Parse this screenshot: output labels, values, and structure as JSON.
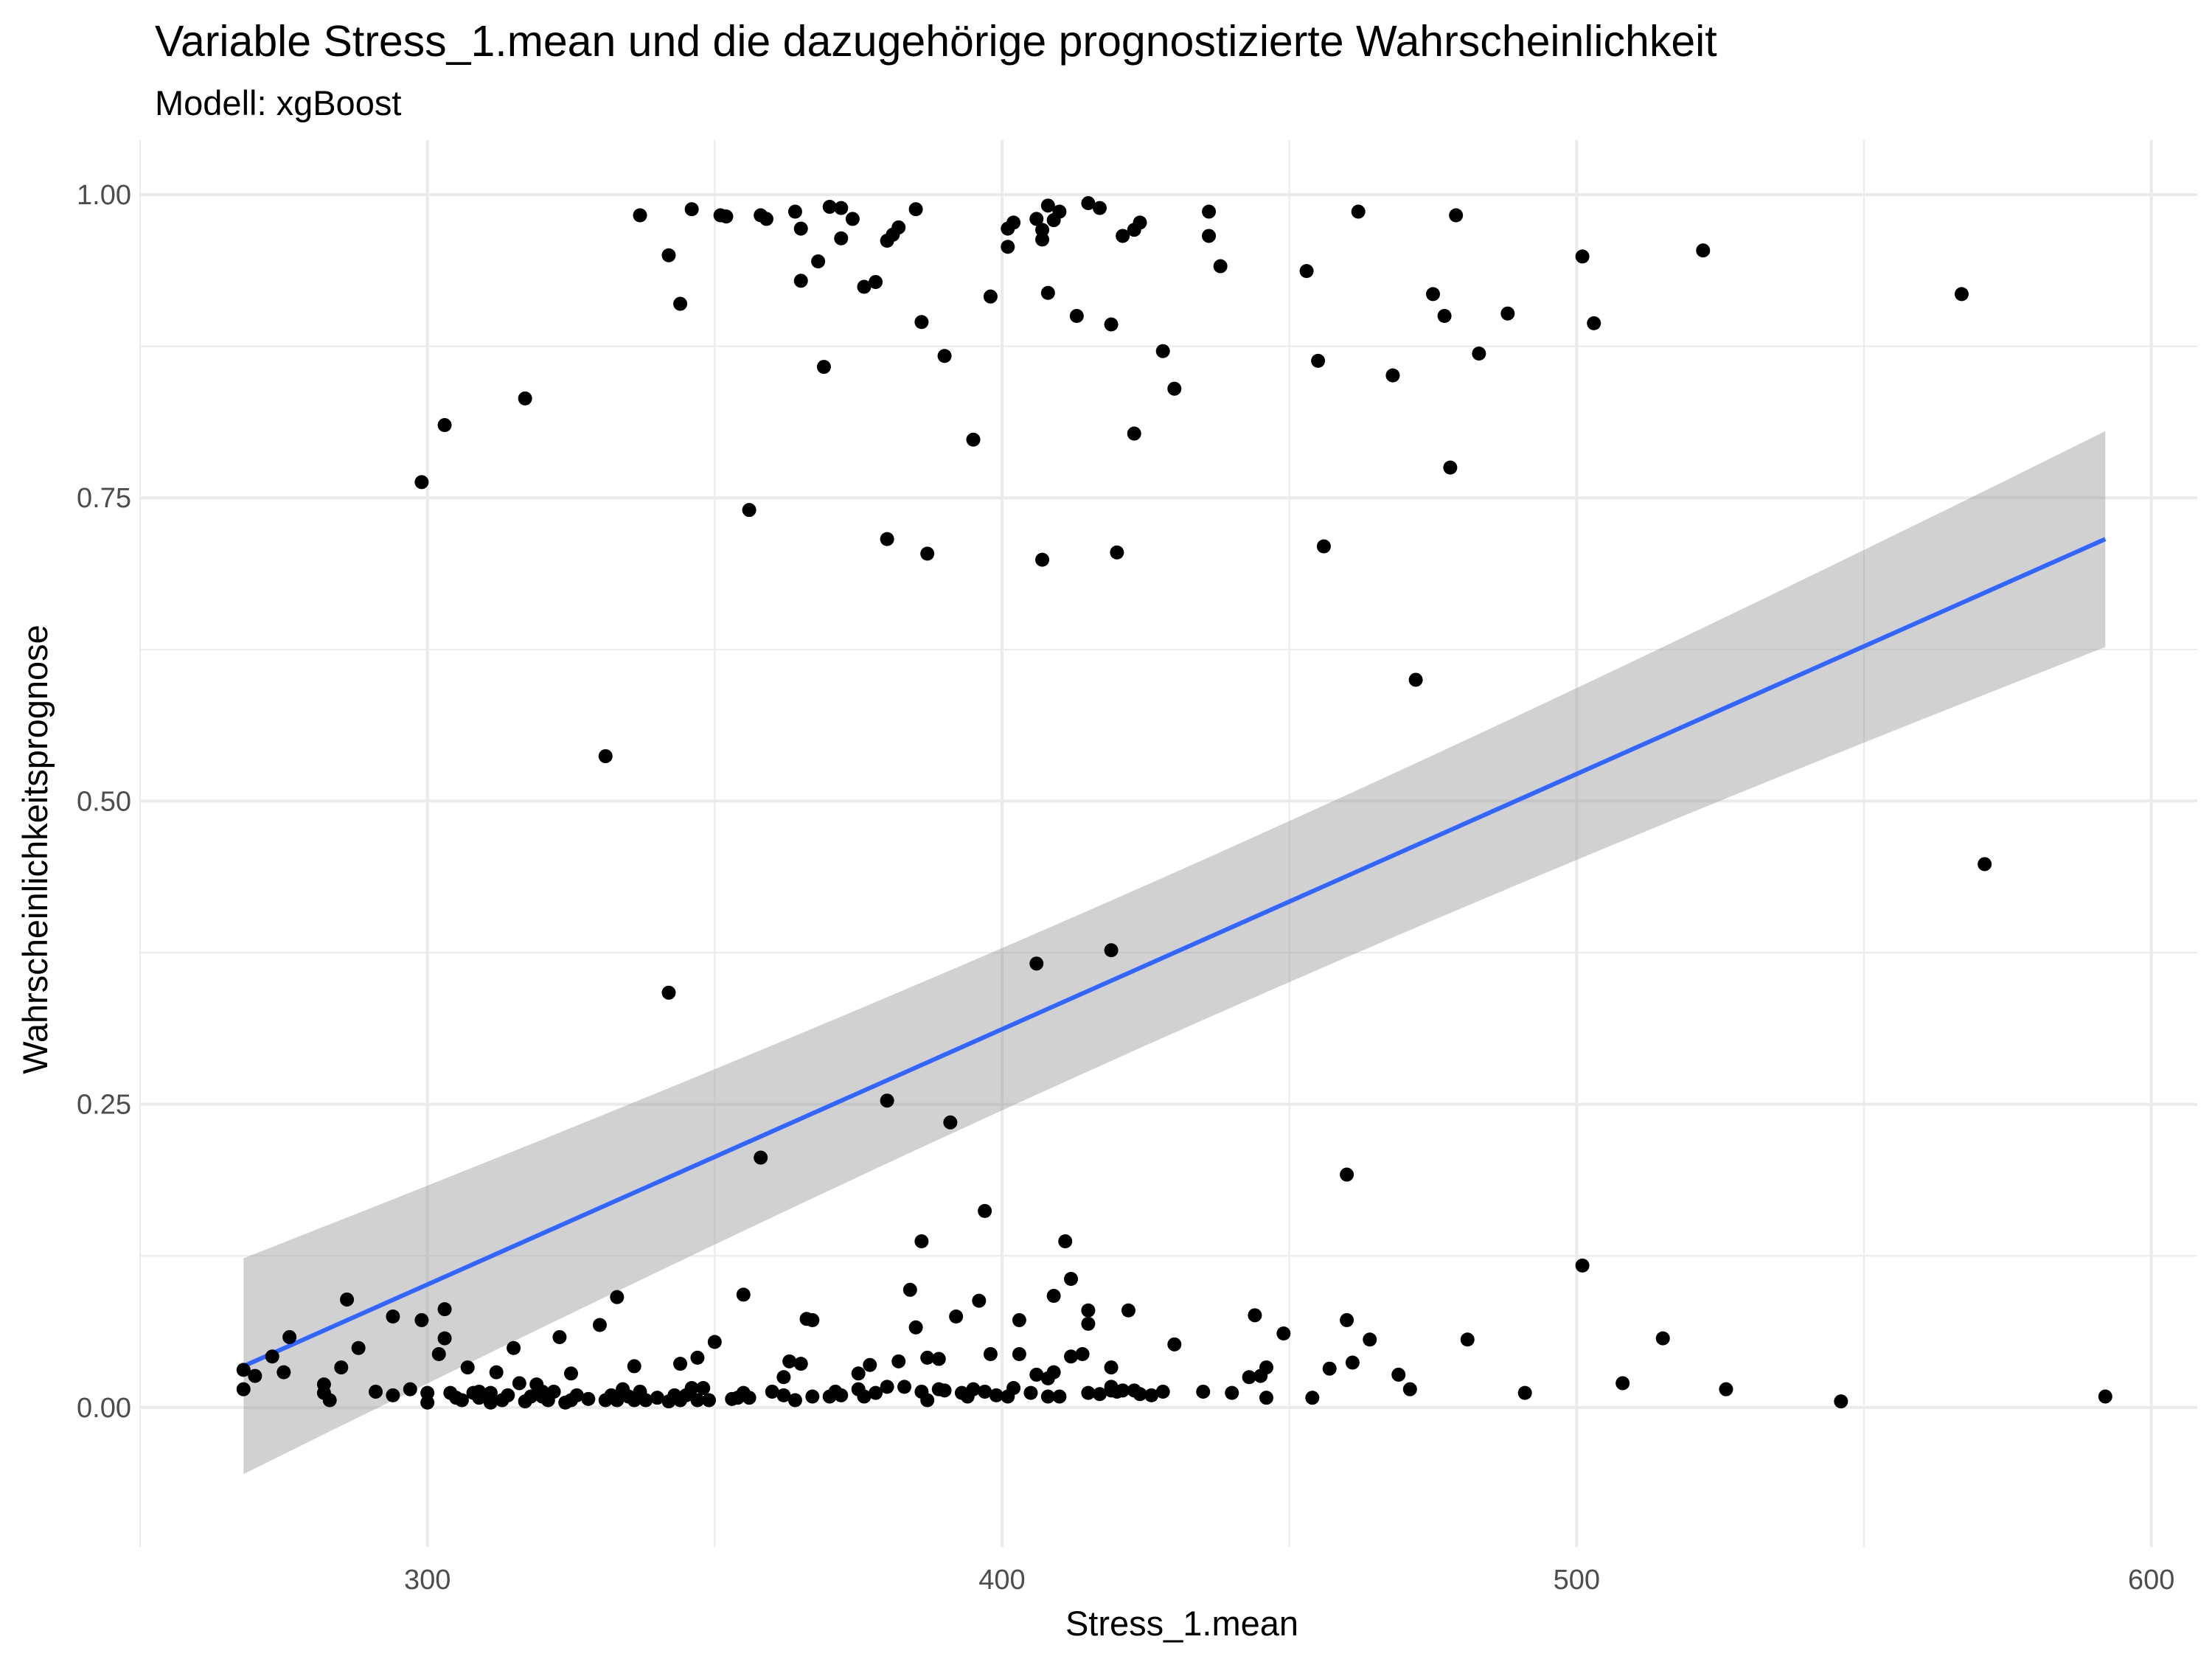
{
  "chart_data": {
    "type": "scatter",
    "title": "Variable Stress_1.mean und die dazugehörige prognostizierte Wahrscheinlichkeit",
    "subtitle": "Modell: xgBoost",
    "xlabel": "Stress_1.mean",
    "ylabel": "Wahrscheinlichkeitsprognose",
    "xlim": [
      250,
      608
    ],
    "ylim": [
      -0.115,
      1.045
    ],
    "x_ticks": [
      300,
      400,
      500,
      600
    ],
    "x_tick_labels": [
      "300",
      "400",
      "500",
      "600"
    ],
    "y_ticks": [
      0,
      0.25,
      0.5,
      0.75,
      1
    ],
    "y_tick_labels": [
      "0.00",
      "0.25",
      "0.50",
      "0.75",
      "1.00"
    ],
    "grid": true,
    "colors": {
      "points": "#000000",
      "line": "#3366ff",
      "ribbon": "#999999",
      "grid": "#ebebeb"
    },
    "regression": {
      "method": "lm",
      "x": [
        268,
        592
      ],
      "y": [
        0.034,
        0.716
      ],
      "ci_lower": [
        -0.055,
        0.555
      ],
      "ci_upper": [
        0.123,
        0.877
      ]
    },
    "points": [
      [
        268,
        0.031
      ],
      [
        268,
        0.015
      ],
      [
        270,
        0.026
      ],
      [
        273,
        0.042
      ],
      [
        275,
        0.029
      ],
      [
        276,
        0.058
      ],
      [
        282,
        0.019
      ],
      [
        282,
        0.012
      ],
      [
        283,
        0.006
      ],
      [
        285,
        0.033
      ],
      [
        286,
        0.089
      ],
      [
        288,
        0.049
      ],
      [
        291,
        0.013
      ],
      [
        294,
        0.075
      ],
      [
        294,
        0.01
      ],
      [
        297,
        0.015
      ],
      [
        299,
        0.072
      ],
      [
        300,
        0.004
      ],
      [
        300,
        0.012
      ],
      [
        302,
        0.044
      ],
      [
        303,
        0.081
      ],
      [
        303,
        0.057
      ],
      [
        304,
        0.012
      ],
      [
        305,
        0.008
      ],
      [
        306,
        0.006
      ],
      [
        307,
        0.033
      ],
      [
        308,
        0.012
      ],
      [
        309,
        0.008
      ],
      [
        309,
        0.013
      ],
      [
        311,
        0.012
      ],
      [
        311,
        0.004
      ],
      [
        312,
        0.029
      ],
      [
        313,
        0.006
      ],
      [
        314,
        0.01
      ],
      [
        315,
        0.049
      ],
      [
        316,
        0.02
      ],
      [
        317,
        0.005
      ],
      [
        318,
        0.009
      ],
      [
        319,
        0.019
      ],
      [
        320,
        0.009
      ],
      [
        320,
        0.013
      ],
      [
        321,
        0.006
      ],
      [
        322,
        0.013
      ],
      [
        323,
        0.058
      ],
      [
        324,
        0.004
      ],
      [
        325,
        0.006
      ],
      [
        325,
        0.028
      ],
      [
        326,
        0.01
      ],
      [
        328,
        0.007
      ],
      [
        330,
        0.068
      ],
      [
        331,
        0.006
      ],
      [
        332,
        0.01
      ],
      [
        333,
        0.091
      ],
      [
        333,
        0.006
      ],
      [
        334,
        0.015
      ],
      [
        335,
        0.009
      ],
      [
        336,
        0.006
      ],
      [
        336,
        0.034
      ],
      [
        337,
        0.013
      ],
      [
        338,
        0.006
      ],
      [
        340,
        0.008
      ],
      [
        342,
        0.005
      ],
      [
        343,
        0.01
      ],
      [
        344,
        0.036
      ],
      [
        344,
        0.006
      ],
      [
        345,
        0.01
      ],
      [
        346,
        0.016
      ],
      [
        347,
        0.006
      ],
      [
        347,
        0.041
      ],
      [
        348,
        0.016
      ],
      [
        349,
        0.006
      ],
      [
        350,
        0.054
      ],
      [
        353,
        0.007
      ],
      [
        354,
        0.008
      ],
      [
        355,
        0.012
      ],
      [
        355,
        0.093
      ],
      [
        356,
        0.008
      ],
      [
        360,
        0.013
      ],
      [
        362,
        0.01
      ],
      [
        362,
        0.025
      ],
      [
        363,
        0.038
      ],
      [
        364,
        0.006
      ],
      [
        365,
        0.036
      ],
      [
        367,
        0.009
      ],
      [
        367,
        0.072
      ],
      [
        370,
        0.009
      ],
      [
        371,
        0.013
      ],
      [
        372,
        0.01
      ],
      [
        375,
        0.015
      ],
      [
        375,
        0.028
      ],
      [
        376,
        0.009
      ],
      [
        377,
        0.035
      ],
      [
        378,
        0.012
      ],
      [
        380,
        0.017
      ],
      [
        382,
        0.038
      ],
      [
        383,
        0.017
      ],
      [
        384,
        0.097
      ],
      [
        385,
        0.066
      ],
      [
        386,
        0.013
      ],
      [
        387,
        0.006
      ],
      [
        387,
        0.041
      ],
      [
        389,
        0.015
      ],
      [
        389,
        0.04
      ],
      [
        390,
        0.014
      ],
      [
        392,
        0.075
      ],
      [
        393,
        0.012
      ],
      [
        394,
        0.009
      ],
      [
        395,
        0.015
      ],
      [
        396,
        0.088
      ],
      [
        397,
        0.013
      ],
      [
        398,
        0.044
      ],
      [
        399,
        0.01
      ],
      [
        401,
        0.009
      ],
      [
        402,
        0.016
      ],
      [
        403,
        0.072
      ],
      [
        403,
        0.044
      ],
      [
        405,
        0.012
      ],
      [
        406,
        0.027
      ],
      [
        408,
        0.024
      ],
      [
        408,
        0.009
      ],
      [
        409,
        0.092
      ],
      [
        409,
        0.029
      ],
      [
        410,
        0.009
      ],
      [
        412,
        0.042
      ],
      [
        412,
        0.106
      ],
      [
        414,
        0.044
      ],
      [
        415,
        0.012
      ],
      [
        415,
        0.08
      ],
      [
        415,
        0.069
      ],
      [
        417,
        0.011
      ],
      [
        419,
        0.033
      ],
      [
        419,
        0.014
      ],
      [
        419,
        0.017
      ],
      [
        420,
        0.013
      ],
      [
        421,
        0.014
      ],
      [
        422,
        0.08
      ],
      [
        423,
        0.014
      ],
      [
        424,
        0.011
      ],
      [
        426,
        0.01
      ],
      [
        428,
        0.013
      ],
      [
        430,
        0.052
      ],
      [
        435,
        0.013
      ],
      [
        440,
        0.012
      ],
      [
        443,
        0.025
      ],
      [
        444,
        0.076
      ],
      [
        445,
        0.026
      ],
      [
        446,
        0.008
      ],
      [
        446,
        0.033
      ],
      [
        449,
        0.061
      ],
      [
        454,
        0.008
      ],
      [
        457,
        0.032
      ],
      [
        460,
        0.072
      ],
      [
        461,
        0.037
      ],
      [
        464,
        0.056
      ],
      [
        469,
        0.027
      ],
      [
        471,
        0.015
      ],
      [
        481,
        0.056
      ],
      [
        491,
        0.012
      ],
      [
        508,
        0.02
      ],
      [
        515,
        0.057
      ],
      [
        526,
        0.015
      ],
      [
        546,
        0.005
      ],
      [
        592,
        0.009
      ],
      [
        501,
        0.117
      ],
      [
        460,
        0.192
      ],
      [
        366,
        0.073
      ],
      [
        358,
        0.206
      ],
      [
        380,
        0.253
      ],
      [
        391,
        0.235
      ],
      [
        386,
        0.137
      ],
      [
        397,
        0.162
      ],
      [
        411,
        0.137
      ],
      [
        342,
        0.342
      ],
      [
        406,
        0.366
      ],
      [
        419,
        0.377
      ],
      [
        571,
        0.448
      ],
      [
        331,
        0.537
      ],
      [
        472,
        0.6
      ],
      [
        299,
        0.763
      ],
      [
        303,
        0.81
      ],
      [
        317,
        0.832
      ],
      [
        356,
        0.74
      ],
      [
        380,
        0.716
      ],
      [
        387,
        0.704
      ],
      [
        395,
        0.798
      ],
      [
        407,
        0.699
      ],
      [
        420,
        0.705
      ],
      [
        423,
        0.803
      ],
      [
        428,
        0.871
      ],
      [
        430,
        0.84
      ],
      [
        456,
        0.71
      ],
      [
        455,
        0.863
      ],
      [
        468,
        0.851
      ],
      [
        478,
        0.775
      ],
      [
        483,
        0.869
      ],
      [
        337,
        0.983
      ],
      [
        342,
        0.95
      ],
      [
        344,
        0.91
      ],
      [
        346,
        0.988
      ],
      [
        351,
        0.983
      ],
      [
        352,
        0.982
      ],
      [
        358,
        0.983
      ],
      [
        359,
        0.98
      ],
      [
        364,
        0.986
      ],
      [
        365,
        0.972
      ],
      [
        365,
        0.929
      ],
      [
        368,
        0.945
      ],
      [
        369,
        0.858
      ],
      [
        370,
        0.99
      ],
      [
        372,
        0.989
      ],
      [
        372,
        0.964
      ],
      [
        374,
        0.98
      ],
      [
        376,
        0.924
      ],
      [
        378,
        0.928
      ],
      [
        380,
        0.962
      ],
      [
        381,
        0.967
      ],
      [
        382,
        0.973
      ],
      [
        385,
        0.988
      ],
      [
        386,
        0.895
      ],
      [
        390,
        0.867
      ],
      [
        398,
        0.916
      ],
      [
        401,
        0.957
      ],
      [
        401,
        0.972
      ],
      [
        402,
        0.977
      ],
      [
        406,
        0.98
      ],
      [
        407,
        0.971
      ],
      [
        407,
        0.963
      ],
      [
        408,
        0.991
      ],
      [
        408,
        0.919
      ],
      [
        409,
        0.979
      ],
      [
        410,
        0.986
      ],
      [
        413,
        0.9
      ],
      [
        415,
        0.993
      ],
      [
        417,
        0.989
      ],
      [
        419,
        0.893
      ],
      [
        421,
        0.966
      ],
      [
        423,
        0.971
      ],
      [
        424,
        0.977
      ],
      [
        436,
        0.986
      ],
      [
        436,
        0.966
      ],
      [
        438,
        0.941
      ],
      [
        453,
        0.937
      ],
      [
        462,
        0.986
      ],
      [
        475,
        0.918
      ],
      [
        477,
        0.9
      ],
      [
        479,
        0.983
      ],
      [
        488,
        0.902
      ],
      [
        501,
        0.949
      ],
      [
        503,
        0.894
      ],
      [
        522,
        0.954
      ],
      [
        567,
        0.918
      ]
    ]
  }
}
